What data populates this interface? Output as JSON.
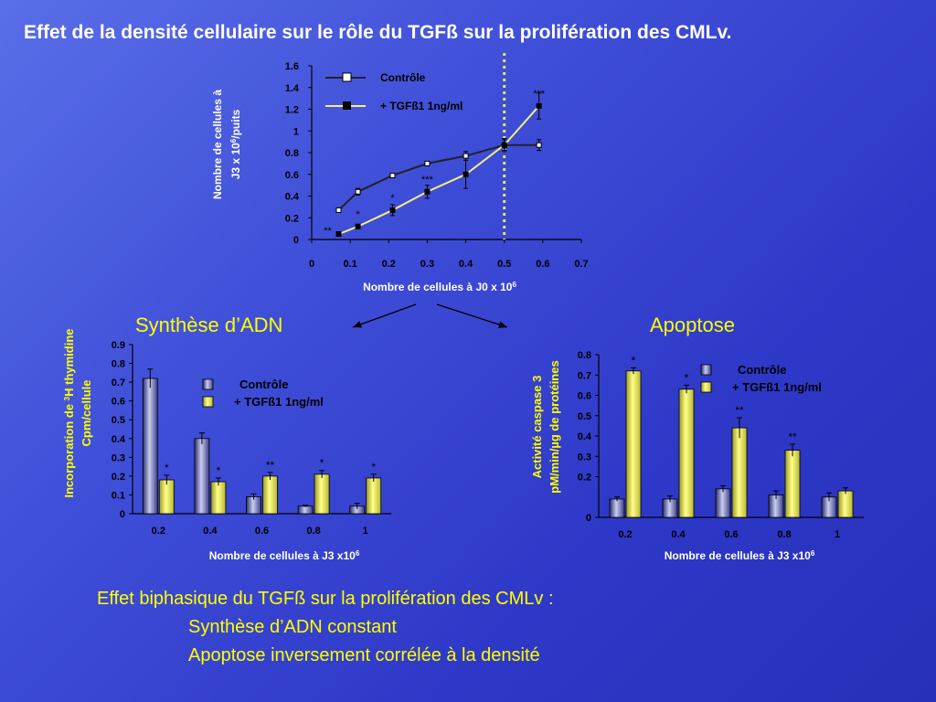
{
  "slide": {
    "title": "Effet de la densité cellulaire sur le rôle du TGFß sur la prolifération des CMLv.",
    "section_left": "Synthèse d’ADN",
    "section_right": "Apoptose",
    "summary": {
      "line1": "Effet biphasique du TGFß sur la prolifération des CMLv :",
      "line2": "Synthèse d’ADN constant",
      "line3": "Apoptose  inversement corrélée à la densité"
    }
  },
  "colors": {
    "background": "#3441d0",
    "text_white": "#ffffff",
    "text_yellow": "#ffff00",
    "control_series": "#b8bde6",
    "tgf_series": "#f4f07a",
    "tgf_line": "#f4f07a",
    "control_line": "#222222",
    "divider_dotted": "#e8e84a"
  },
  "chart_data": [
    {
      "type": "line",
      "id": "proliferation",
      "xlabel_text": "Nombre de cellules à J0 x 10",
      "xlabel_sup": "6",
      "ylabel_line1": "Nombre de cellules à",
      "ylabel_line2": "J3 x 10",
      "ylabel_sup": "6",
      "ylabel_line2_end": "/puits",
      "xlim": [
        0,
        0.7
      ],
      "ylim": [
        0,
        1.6
      ],
      "x_ticks": [
        "0",
        "0.1",
        "0.2",
        "0.3",
        "0.4",
        "0.5",
        "0.6",
        "0.7"
      ],
      "y_ticks": [
        "0",
        "0.2",
        "0.4",
        "0.6",
        "0.8",
        "1",
        "1.2",
        "1.4",
        "1.6"
      ],
      "vline_x": 0.5,
      "legend_position": "top-left",
      "series": [
        {
          "name": "Contrôle",
          "x": [
            0.07,
            0.12,
            0.21,
            0.3,
            0.4,
            0.5,
            0.59
          ],
          "y": [
            0.27,
            0.44,
            0.59,
            0.7,
            0.77,
            0.87,
            0.87
          ],
          "err": [
            0.02,
            0.03,
            0.02,
            0.02,
            0.04,
            0.05,
            0.05
          ],
          "marker": "open-square"
        },
        {
          "name": "+ TGFß1 1ng/ml",
          "x": [
            0.07,
            0.12,
            0.21,
            0.3,
            0.4,
            0.5,
            0.59
          ],
          "y": [
            0.05,
            0.12,
            0.27,
            0.44,
            0.6,
            0.87,
            1.23
          ],
          "err": [
            0.02,
            0.02,
            0.05,
            0.06,
            0.13,
            0.06,
            0.12
          ],
          "marker": "filled-square"
        }
      ],
      "annotations": [
        {
          "x": 0.07,
          "y": 0.05,
          "text": "**"
        },
        {
          "x": 0.12,
          "y": 0.12,
          "text": "*"
        },
        {
          "x": 0.21,
          "y": 0.27,
          "text": "*"
        },
        {
          "x": 0.3,
          "y": 0.44,
          "text": "***"
        },
        {
          "x": 0.59,
          "y": 1.23,
          "text": "***"
        }
      ]
    },
    {
      "type": "bar",
      "id": "dna_synthesis",
      "xlabel_text": "Nombre de cellules à J3 x10",
      "xlabel_sup": "6",
      "ylabel_line1_pre": "Incorporation de ",
      "ylabel_line1_sup": "3",
      "ylabel_line1_post": "H thymidine",
      "ylabel_line2": "Cpm/cellule",
      "ylim": [
        0,
        0.9
      ],
      "categories": [
        "0.2",
        "0.4",
        "0.6",
        "0.8",
        "1"
      ],
      "y_ticks": [
        "0",
        "0.1",
        "0.2",
        "0.3",
        "0.4",
        "0.5",
        "0.6",
        "0.7",
        "0.8",
        "0.9"
      ],
      "legend_position": "top-right",
      "series": [
        {
          "name": "Contrôle",
          "values": [
            0.72,
            0.4,
            0.09,
            0.04,
            0.04
          ],
          "err": [
            0.05,
            0.03,
            0.015,
            0.005,
            0.015
          ]
        },
        {
          "name": "+ TGFß1 1ng/ml",
          "values": [
            0.18,
            0.17,
            0.2,
            0.21,
            0.19
          ],
          "err": [
            0.025,
            0.02,
            0.02,
            0.02,
            0.02
          ]
        }
      ],
      "annotations": [
        "*",
        "*",
        "**",
        "*",
        "*"
      ]
    },
    {
      "type": "bar",
      "id": "apoptosis",
      "xlabel_text": "Nombre de cellules à J3 x10",
      "xlabel_sup": "6",
      "ylabel_line1": "Activité caspase 3",
      "ylabel_line2": "pM/min/µg de protéines",
      "ylim": [
        0,
        0.8
      ],
      "categories": [
        "0.2",
        "0.4",
        "0.6",
        "0.8",
        "1"
      ],
      "y_ticks": [
        "0",
        "0.2",
        "0.3",
        "0.4",
        "0.5",
        "0.6",
        "0.7",
        "0.8"
      ],
      "legend_position": "top-right",
      "series": [
        {
          "name": "Contrôle",
          "values": [
            0.09,
            0.09,
            0.14,
            0.11,
            0.1
          ],
          "err": [
            0.01,
            0.015,
            0.015,
            0.02,
            0.02
          ]
        },
        {
          "name": "+ TGFß1 1ng/ml",
          "values": [
            0.72,
            0.63,
            0.44,
            0.33,
            0.13
          ],
          "err": [
            0.015,
            0.02,
            0.05,
            0.03,
            0.015
          ]
        }
      ],
      "annotations": [
        "*",
        "*",
        "**",
        "**",
        ""
      ]
    }
  ]
}
